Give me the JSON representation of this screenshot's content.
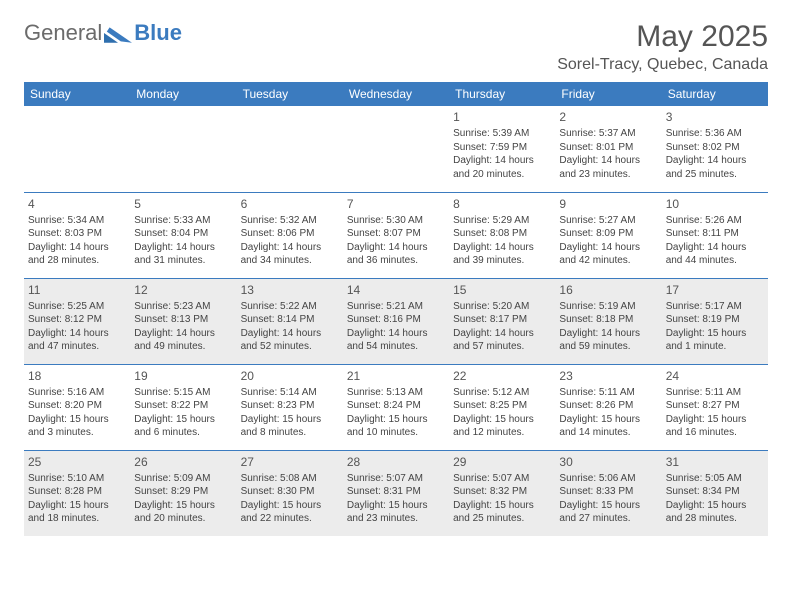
{
  "brand": {
    "part1": "General",
    "part2": "Blue"
  },
  "title": "May 2025",
  "location": "Sorel-Tracy, Quebec, Canada",
  "header_bg": "#3b7bbf",
  "shade_bg": "#ececec",
  "day_headers": [
    "Sunday",
    "Monday",
    "Tuesday",
    "Wednesday",
    "Thursday",
    "Friday",
    "Saturday"
  ],
  "weeks": [
    [
      {
        "blank": true
      },
      {
        "blank": true
      },
      {
        "blank": true
      },
      {
        "blank": true
      },
      {
        "n": "1",
        "sr": "Sunrise: 5:39 AM",
        "ss": "Sunset: 7:59 PM",
        "dl1": "Daylight: 14 hours",
        "dl2": "and 20 minutes."
      },
      {
        "n": "2",
        "sr": "Sunrise: 5:37 AM",
        "ss": "Sunset: 8:01 PM",
        "dl1": "Daylight: 14 hours",
        "dl2": "and 23 minutes."
      },
      {
        "n": "3",
        "sr": "Sunrise: 5:36 AM",
        "ss": "Sunset: 8:02 PM",
        "dl1": "Daylight: 14 hours",
        "dl2": "and 25 minutes."
      }
    ],
    [
      {
        "n": "4",
        "sr": "Sunrise: 5:34 AM",
        "ss": "Sunset: 8:03 PM",
        "dl1": "Daylight: 14 hours",
        "dl2": "and 28 minutes."
      },
      {
        "n": "5",
        "sr": "Sunrise: 5:33 AM",
        "ss": "Sunset: 8:04 PM",
        "dl1": "Daylight: 14 hours",
        "dl2": "and 31 minutes."
      },
      {
        "n": "6",
        "sr": "Sunrise: 5:32 AM",
        "ss": "Sunset: 8:06 PM",
        "dl1": "Daylight: 14 hours",
        "dl2": "and 34 minutes."
      },
      {
        "n": "7",
        "sr": "Sunrise: 5:30 AM",
        "ss": "Sunset: 8:07 PM",
        "dl1": "Daylight: 14 hours",
        "dl2": "and 36 minutes."
      },
      {
        "n": "8",
        "sr": "Sunrise: 5:29 AM",
        "ss": "Sunset: 8:08 PM",
        "dl1": "Daylight: 14 hours",
        "dl2": "and 39 minutes."
      },
      {
        "n": "9",
        "sr": "Sunrise: 5:27 AM",
        "ss": "Sunset: 8:09 PM",
        "dl1": "Daylight: 14 hours",
        "dl2": "and 42 minutes."
      },
      {
        "n": "10",
        "sr": "Sunrise: 5:26 AM",
        "ss": "Sunset: 8:11 PM",
        "dl1": "Daylight: 14 hours",
        "dl2": "and 44 minutes."
      }
    ],
    [
      {
        "n": "11",
        "sr": "Sunrise: 5:25 AM",
        "ss": "Sunset: 8:12 PM",
        "dl1": "Daylight: 14 hours",
        "dl2": "and 47 minutes.",
        "shaded": true
      },
      {
        "n": "12",
        "sr": "Sunrise: 5:23 AM",
        "ss": "Sunset: 8:13 PM",
        "dl1": "Daylight: 14 hours",
        "dl2": "and 49 minutes.",
        "shaded": true
      },
      {
        "n": "13",
        "sr": "Sunrise: 5:22 AM",
        "ss": "Sunset: 8:14 PM",
        "dl1": "Daylight: 14 hours",
        "dl2": "and 52 minutes.",
        "shaded": true
      },
      {
        "n": "14",
        "sr": "Sunrise: 5:21 AM",
        "ss": "Sunset: 8:16 PM",
        "dl1": "Daylight: 14 hours",
        "dl2": "and 54 minutes.",
        "shaded": true
      },
      {
        "n": "15",
        "sr": "Sunrise: 5:20 AM",
        "ss": "Sunset: 8:17 PM",
        "dl1": "Daylight: 14 hours",
        "dl2": "and 57 minutes.",
        "shaded": true
      },
      {
        "n": "16",
        "sr": "Sunrise: 5:19 AM",
        "ss": "Sunset: 8:18 PM",
        "dl1": "Daylight: 14 hours",
        "dl2": "and 59 minutes.",
        "shaded": true
      },
      {
        "n": "17",
        "sr": "Sunrise: 5:17 AM",
        "ss": "Sunset: 8:19 PM",
        "dl1": "Daylight: 15 hours",
        "dl2": "and 1 minute.",
        "shaded": true
      }
    ],
    [
      {
        "n": "18",
        "sr": "Sunrise: 5:16 AM",
        "ss": "Sunset: 8:20 PM",
        "dl1": "Daylight: 15 hours",
        "dl2": "and 3 minutes."
      },
      {
        "n": "19",
        "sr": "Sunrise: 5:15 AM",
        "ss": "Sunset: 8:22 PM",
        "dl1": "Daylight: 15 hours",
        "dl2": "and 6 minutes."
      },
      {
        "n": "20",
        "sr": "Sunrise: 5:14 AM",
        "ss": "Sunset: 8:23 PM",
        "dl1": "Daylight: 15 hours",
        "dl2": "and 8 minutes."
      },
      {
        "n": "21",
        "sr": "Sunrise: 5:13 AM",
        "ss": "Sunset: 8:24 PM",
        "dl1": "Daylight: 15 hours",
        "dl2": "and 10 minutes."
      },
      {
        "n": "22",
        "sr": "Sunrise: 5:12 AM",
        "ss": "Sunset: 8:25 PM",
        "dl1": "Daylight: 15 hours",
        "dl2": "and 12 minutes."
      },
      {
        "n": "23",
        "sr": "Sunrise: 5:11 AM",
        "ss": "Sunset: 8:26 PM",
        "dl1": "Daylight: 15 hours",
        "dl2": "and 14 minutes."
      },
      {
        "n": "24",
        "sr": "Sunrise: 5:11 AM",
        "ss": "Sunset: 8:27 PM",
        "dl1": "Daylight: 15 hours",
        "dl2": "and 16 minutes."
      }
    ],
    [
      {
        "n": "25",
        "sr": "Sunrise: 5:10 AM",
        "ss": "Sunset: 8:28 PM",
        "dl1": "Daylight: 15 hours",
        "dl2": "and 18 minutes.",
        "shaded": true
      },
      {
        "n": "26",
        "sr": "Sunrise: 5:09 AM",
        "ss": "Sunset: 8:29 PM",
        "dl1": "Daylight: 15 hours",
        "dl2": "and 20 minutes.",
        "shaded": true
      },
      {
        "n": "27",
        "sr": "Sunrise: 5:08 AM",
        "ss": "Sunset: 8:30 PM",
        "dl1": "Daylight: 15 hours",
        "dl2": "and 22 minutes.",
        "shaded": true
      },
      {
        "n": "28",
        "sr": "Sunrise: 5:07 AM",
        "ss": "Sunset: 8:31 PM",
        "dl1": "Daylight: 15 hours",
        "dl2": "and 23 minutes.",
        "shaded": true
      },
      {
        "n": "29",
        "sr": "Sunrise: 5:07 AM",
        "ss": "Sunset: 8:32 PM",
        "dl1": "Daylight: 15 hours",
        "dl2": "and 25 minutes.",
        "shaded": true
      },
      {
        "n": "30",
        "sr": "Sunrise: 5:06 AM",
        "ss": "Sunset: 8:33 PM",
        "dl1": "Daylight: 15 hours",
        "dl2": "and 27 minutes.",
        "shaded": true
      },
      {
        "n": "31",
        "sr": "Sunrise: 5:05 AM",
        "ss": "Sunset: 8:34 PM",
        "dl1": "Daylight: 15 hours",
        "dl2": "and 28 minutes.",
        "shaded": true
      }
    ]
  ]
}
